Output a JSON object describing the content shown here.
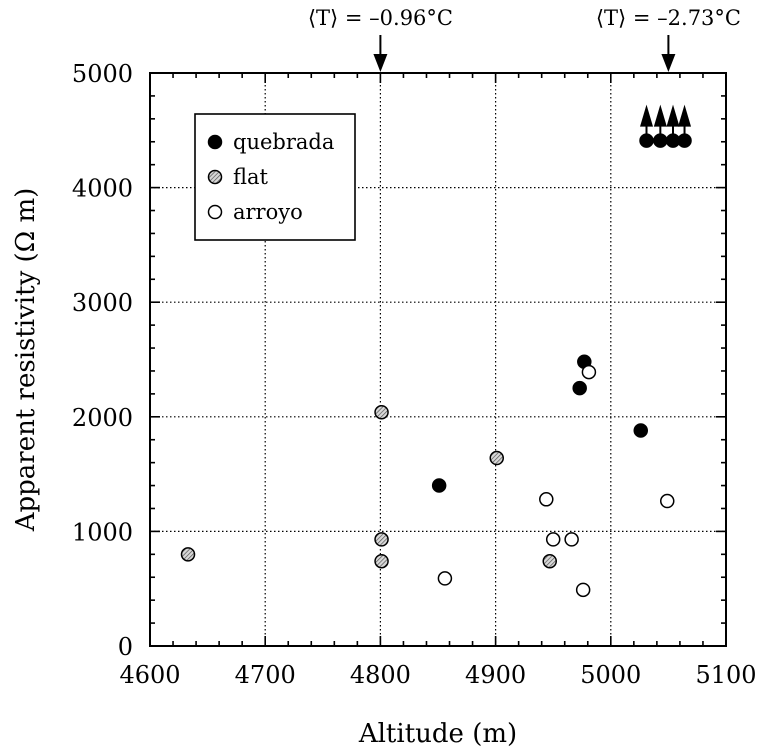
{
  "chart_data": {
    "type": "scatter",
    "xlabel": "Altitude  (m)",
    "ylabel": "Apparent resistivity  (Ω m)",
    "xlim": [
      4600,
      5100
    ],
    "ylim": [
      0,
      5000
    ],
    "xticks": [
      4600,
      4700,
      4800,
      4900,
      5000,
      5100
    ],
    "yticks": [
      0,
      1000,
      2000,
      3000,
      4000,
      5000
    ],
    "x_tick_labels": [
      "4600",
      "4700",
      "4800",
      "4900",
      "5000",
      "5100"
    ],
    "y_tick_labels": [
      "0",
      "1000",
      "2000",
      "3000",
      "4000",
      "5000"
    ],
    "grid": true,
    "legend_position": "top-left",
    "series": [
      {
        "name": "quebrada",
        "marker": "filled-circle",
        "color": "#000000",
        "points": [
          {
            "x": 4851,
            "y": 1400
          },
          {
            "x": 4973,
            "y": 2250
          },
          {
            "x": 4977,
            "y": 2480
          },
          {
            "x": 5026,
            "y": 1880
          }
        ]
      },
      {
        "name": "flat",
        "marker": "hatched-circle",
        "color": "#999999",
        "points": [
          {
            "x": 4633,
            "y": 800
          },
          {
            "x": 4801,
            "y": 2040
          },
          {
            "x": 4801,
            "y": 930
          },
          {
            "x": 4801,
            "y": 740
          },
          {
            "x": 4901,
            "y": 1640
          },
          {
            "x": 4947,
            "y": 740
          }
        ]
      },
      {
        "name": "arroyo",
        "marker": "open-circle",
        "color": "#ffffff",
        "points": [
          {
            "x": 4981,
            "y": 2390
          },
          {
            "x": 4944,
            "y": 1280
          },
          {
            "x": 5049,
            "y": 1265
          },
          {
            "x": 4950,
            "y": 930
          },
          {
            "x": 4966,
            "y": 930
          },
          {
            "x": 4856,
            "y": 590
          },
          {
            "x": 4976,
            "y": 490
          }
        ]
      }
    ],
    "lower_bound_points": {
      "marker": "filled-circle-with-up-arrow",
      "points": [
        {
          "x": 5031,
          "y": 4410
        },
        {
          "x": 5043,
          "y": 4410
        },
        {
          "x": 5054,
          "y": 4410
        },
        {
          "x": 5064,
          "y": 4410
        }
      ]
    },
    "annotations": [
      {
        "text": "⟨T⟩ = –0.96°C",
        "x": 4800
      },
      {
        "text": "⟨T⟩ = –2.73°C",
        "x": 5050
      }
    ]
  }
}
